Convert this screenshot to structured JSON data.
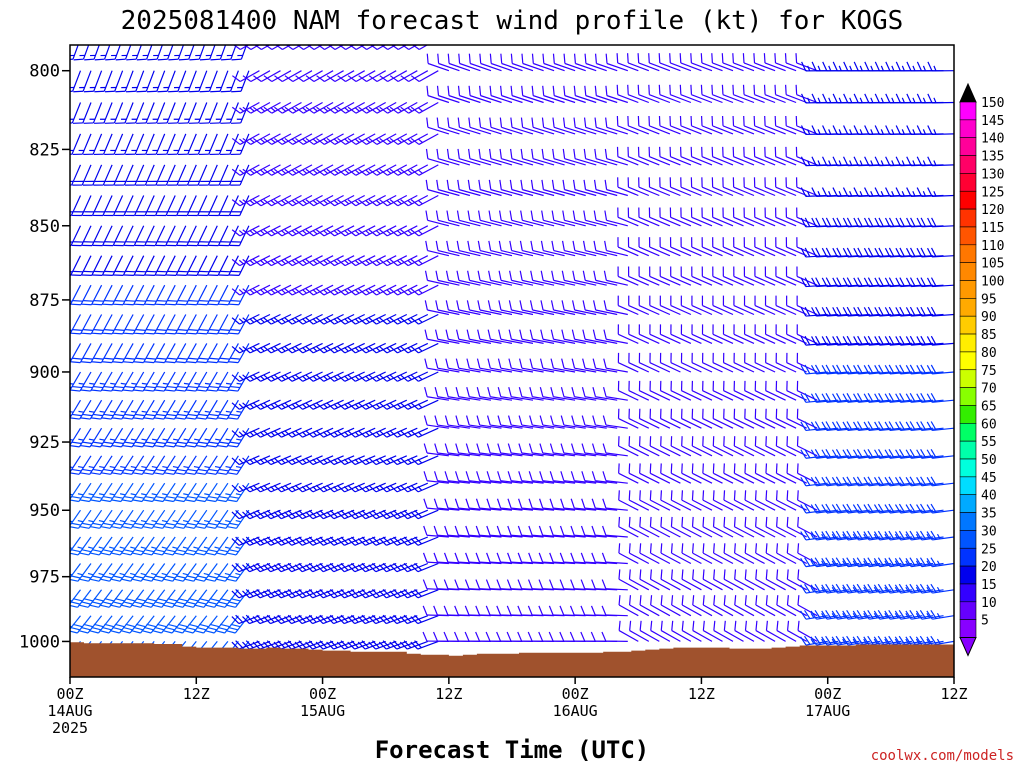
{
  "chart_data": {
    "type": "wind-barb-profile",
    "title": "2025081400 NAM forecast wind profile (kt) for KOGS",
    "xlabel": "Forecast Time (UTC)",
    "credit": "coolwx.com/models",
    "y_axis": {
      "label": "",
      "ticks": [
        "800",
        "825",
        "850",
        "875",
        "900",
        "925",
        "950",
        "975",
        "1000"
      ],
      "range_hpa": [
        792,
        1014
      ],
      "scale": "log"
    },
    "x_axis": {
      "range_hours": [
        0,
        84
      ],
      "ticks": [
        {
          "hour": 0,
          "l1": "00Z",
          "l2": "14AUG",
          "l3": "2025"
        },
        {
          "hour": 12,
          "l1": "12Z",
          "l2": "",
          "l3": ""
        },
        {
          "hour": 24,
          "l1": "00Z",
          "l2": "15AUG",
          "l3": ""
        },
        {
          "hour": 36,
          "l1": "12Z",
          "l2": "",
          "l3": ""
        },
        {
          "hour": 48,
          "l1": "00Z",
          "l2": "16AUG",
          "l3": ""
        },
        {
          "hour": 60,
          "l1": "12Z",
          "l2": "",
          "l3": ""
        },
        {
          "hour": 72,
          "l1": "00Z",
          "l2": "17AUG",
          "l3": ""
        },
        {
          "hour": 84,
          "l1": "12Z",
          "l2": "",
          "l3": ""
        }
      ]
    },
    "colorbar": {
      "labels": [
        "150",
        "145",
        "140",
        "135",
        "130",
        "125",
        "120",
        "115",
        "110",
        "105",
        "100",
        "95",
        "90",
        "85",
        "80",
        "75",
        "70",
        "65",
        "60",
        "55",
        "50",
        "45",
        "40",
        "35",
        "30",
        "25",
        "20",
        "15",
        "10",
        "5"
      ],
      "colors": [
        "#ff00ff",
        "#ff00cc",
        "#ff0099",
        "#ff0066",
        "#ff0033",
        "#ff0000",
        "#ff3300",
        "#ff5500",
        "#ff7700",
        "#ff8800",
        "#ff9900",
        "#ffaa00",
        "#ffcc00",
        "#ffee00",
        "#ffff00",
        "#ccff00",
        "#88ff00",
        "#33ee00",
        "#00ff66",
        "#00ffaa",
        "#00ffdd",
        "#00ddff",
        "#00aaff",
        "#0077ff",
        "#0055ff",
        "#0033ff",
        "#0000ee",
        "#3300ff",
        "#6600ff",
        "#8800ff"
      ],
      "top_arrow_color": "#000000",
      "bottom_arrow_color": "#8800ff"
    },
    "terrain_color": "#a0522d",
    "surface_pressure_hpa": [
      1000.3,
      1000.7,
      1000.7,
      1000.7,
      1000.7,
      1000.7,
      1001,
      1001,
      1002,
      1002.4,
      1002.4,
      1002.4,
      1002.8,
      1002.8,
      1002.4,
      1002.8,
      1002.8,
      1003.2,
      1003.6,
      1003.6,
      1004,
      1004,
      1004,
      1004,
      1004.8,
      1005.2,
      1005.2,
      1005.6,
      1005.2,
      1004.8,
      1004.8,
      1004.8,
      1004.4,
      1004.4,
      1004.4,
      1004.4,
      1004.4,
      1004.4,
      1004,
      1004,
      1003.6,
      1003.2,
      1002.8,
      1002.4,
      1002.4,
      1002.4,
      1002.4,
      1002.8,
      1002.8,
      1002.8,
      1002.4,
      1002,
      1001.6,
      1001.6,
      1001.6,
      1001.6,
      1001.2,
      1001.2,
      1001.2,
      1001.2,
      1001.2,
      1001.2,
      1001.2
    ],
    "levels_hpa": [
      790,
      800,
      810,
      820,
      830,
      840,
      850,
      860,
      870,
      880,
      890,
      900,
      910,
      920,
      930,
      940,
      950,
      960,
      970,
      980,
      990,
      1000,
      1010
    ],
    "wind": {
      "time_step_hours": 1,
      "period_1": {
        "hours": [
          0,
          18
        ],
        "low_dir": 220,
        "low_speed": 30,
        "high_dir": 200,
        "high_speed": 15
      },
      "period_2": {
        "hours": [
          18,
          36
        ],
        "low_dir": 250,
        "low_speed": 20,
        "high_dir": 240,
        "high_speed": 12
      },
      "period_3": {
        "hours": [
          36,
          54
        ],
        "low_dir": 270,
        "low_speed": 12,
        "high_dir": 290,
        "high_speed": 10
      },
      "period_4": {
        "hours": [
          54,
          72
        ],
        "low_dir": 300,
        "low_speed": 10,
        "high_dir": 290,
        "high_speed": 12
      },
      "period_5": {
        "hours": [
          72,
          84
        ],
        "low_dir": 260,
        "low_speed": 25,
        "high_dir": 270,
        "high_speed": 15
      }
    }
  }
}
